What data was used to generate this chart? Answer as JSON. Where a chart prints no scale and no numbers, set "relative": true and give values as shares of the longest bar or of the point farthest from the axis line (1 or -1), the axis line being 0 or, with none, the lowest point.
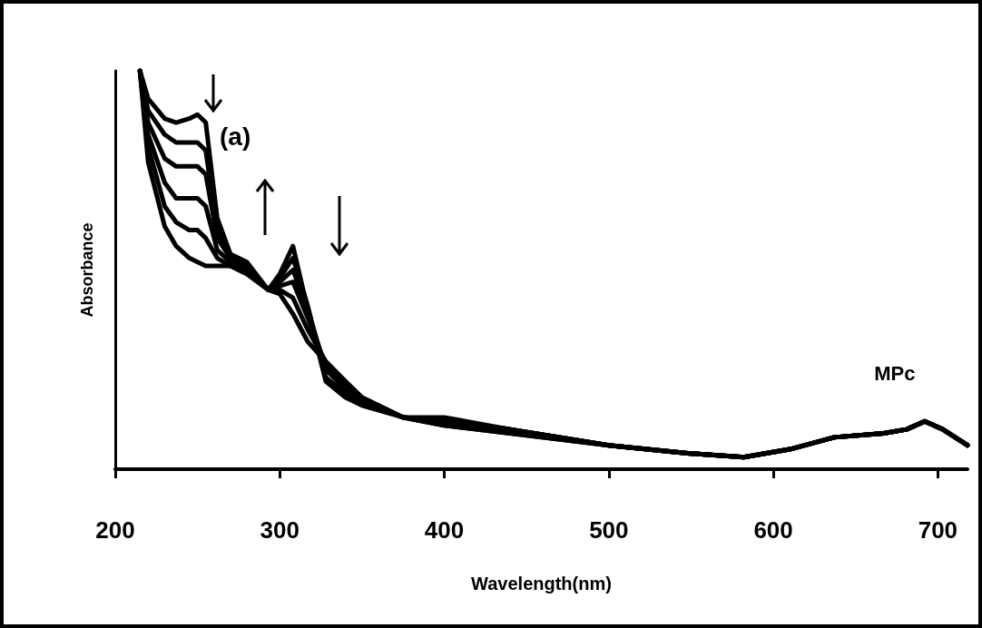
{
  "chart_data": {
    "type": "line",
    "relative": true,
    "xlabel": "Wavelength(nm)",
    "ylabel": "Absorbance",
    "x": [
      215,
      220,
      230,
      237,
      245,
      250,
      255,
      262,
      270,
      280,
      293,
      300,
      308,
      317,
      328,
      340,
      350,
      375,
      400,
      440,
      500,
      548,
      582,
      610,
      637,
      667,
      681,
      692,
      703,
      718
    ],
    "xlim": [
      200,
      718
    ],
    "xticks": [
      200,
      300,
      400,
      500,
      600,
      700
    ],
    "grid": false,
    "marker": "none",
    "line_style": "solid",
    "series": [
      {
        "color": "#000000",
        "values": [
          1.0,
          0.93,
          0.88,
          0.87,
          0.88,
          0.89,
          0.87,
          0.63,
          0.54,
          0.52,
          0.45,
          0.49,
          0.56,
          0.4,
          0.22,
          0.18,
          0.16,
          0.13,
          0.13,
          0.1,
          0.06,
          0.04,
          0.03,
          0.05,
          0.08,
          0.09,
          0.1,
          0.12,
          0.1,
          0.06
        ]
      },
      {
        "color": "#000000",
        "values": [
          1.0,
          0.9,
          0.84,
          0.82,
          0.82,
          0.82,
          0.8,
          0.6,
          0.53,
          0.51,
          0.45,
          0.48,
          0.53,
          0.41,
          0.23,
          0.19,
          0.17,
          0.13,
          0.12,
          0.1,
          0.06,
          0.04,
          0.03,
          0.05,
          0.08,
          0.09,
          0.1,
          0.12,
          0.1,
          0.06
        ]
      },
      {
        "color": "#000000",
        "values": [
          1.0,
          0.87,
          0.78,
          0.76,
          0.76,
          0.76,
          0.74,
          0.58,
          0.53,
          0.51,
          0.45,
          0.47,
          0.5,
          0.4,
          0.25,
          0.2,
          0.17,
          0.13,
          0.12,
          0.1,
          0.06,
          0.04,
          0.03,
          0.05,
          0.08,
          0.09,
          0.1,
          0.12,
          0.1,
          0.06
        ]
      },
      {
        "color": "#000000",
        "values": [
          1.0,
          0.84,
          0.72,
          0.68,
          0.68,
          0.68,
          0.66,
          0.55,
          0.52,
          0.5,
          0.45,
          0.46,
          0.47,
          0.38,
          0.26,
          0.21,
          0.17,
          0.13,
          0.12,
          0.1,
          0.06,
          0.04,
          0.03,
          0.05,
          0.08,
          0.09,
          0.1,
          0.12,
          0.1,
          0.06
        ]
      },
      {
        "color": "#000000",
        "values": [
          1.0,
          0.81,
          0.66,
          0.62,
          0.6,
          0.6,
          0.58,
          0.53,
          0.51,
          0.5,
          0.45,
          0.45,
          0.43,
          0.35,
          0.27,
          0.22,
          0.18,
          0.13,
          0.11,
          0.09,
          0.06,
          0.04,
          0.03,
          0.05,
          0.08,
          0.09,
          0.1,
          0.12,
          0.1,
          0.06
        ]
      },
      {
        "color": "#000000",
        "values": [
          1.0,
          0.77,
          0.61,
          0.56,
          0.53,
          0.52,
          0.51,
          0.51,
          0.51,
          0.49,
          0.45,
          0.44,
          0.39,
          0.32,
          0.27,
          0.22,
          0.18,
          0.13,
          0.11,
          0.09,
          0.06,
          0.04,
          0.03,
          0.05,
          0.08,
          0.09,
          0.1,
          0.12,
          0.1,
          0.06
        ]
      }
    ],
    "annotations": [
      "(a)",
      {
        "text": "MPc",
        "x": 690,
        "y": 0.12
      }
    ]
  }
}
